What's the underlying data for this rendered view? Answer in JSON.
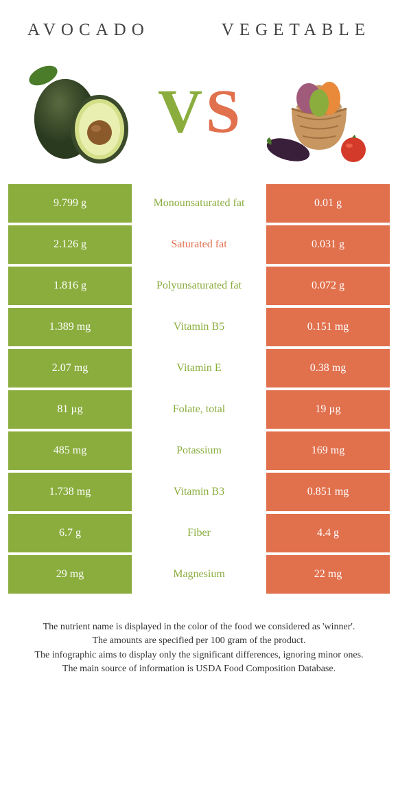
{
  "header": {
    "left_title": "AVOCADO",
    "right_title": "VEGETABLE"
  },
  "vs": {
    "v_letter": "V",
    "s_letter": "S",
    "v_color": "#8aad3e",
    "s_color": "#e1704d"
  },
  "table": {
    "left_color": "#8aad3e",
    "right_color": "#e1704d",
    "rows": [
      {
        "left": "9.799 g",
        "mid": "Monounsaturated fat",
        "right": "0.01 g",
        "mid_color": "#8aad3e"
      },
      {
        "left": "2.126 g",
        "mid": "Saturated fat",
        "right": "0.031 g",
        "mid_color": "#e1704d"
      },
      {
        "left": "1.816 g",
        "mid": "Polyunsaturated fat",
        "right": "0.072 g",
        "mid_color": "#8aad3e"
      },
      {
        "left": "1.389 mg",
        "mid": "Vitamin B5",
        "right": "0.151 mg",
        "mid_color": "#8aad3e"
      },
      {
        "left": "2.07 mg",
        "mid": "Vitamin E",
        "right": "0.38 mg",
        "mid_color": "#8aad3e"
      },
      {
        "left": "81 µg",
        "mid": "Folate, total",
        "right": "19 µg",
        "mid_color": "#8aad3e"
      },
      {
        "left": "485 mg",
        "mid": "Potassium",
        "right": "169 mg",
        "mid_color": "#8aad3e"
      },
      {
        "left": "1.738 mg",
        "mid": "Vitamin B3",
        "right": "0.851 mg",
        "mid_color": "#8aad3e"
      },
      {
        "left": "6.7 g",
        "mid": "Fiber",
        "right": "4.4 g",
        "mid_color": "#8aad3e"
      },
      {
        "left": "29 mg",
        "mid": "Magnesium",
        "right": "22 mg",
        "mid_color": "#8aad3e"
      }
    ]
  },
  "footer": {
    "line1": "The nutrient name is displayed in the color of the food we considered as 'winner'.",
    "line2": "The amounts are specified per 100 gram of the product.",
    "line3": "The infographic aims to display only the significant differences, ignoring minor ones.",
    "line4": "The main source of information is USDA Food Composition Database."
  },
  "illustrations": {
    "avocado": {
      "skin_color": "#3a4a2a",
      "flesh_color": "#d4e089",
      "pit_color": "#8b5a2b",
      "leaf_color": "#4a7c2a"
    },
    "vegetables": {
      "basket_color": "#c89660",
      "tomato_color": "#d43a2a",
      "eggplant_color": "#4a2a4a",
      "pepper_green": "#8aad3e",
      "pepper_orange": "#e88a3a",
      "onion_color": "#a05a7a"
    }
  }
}
